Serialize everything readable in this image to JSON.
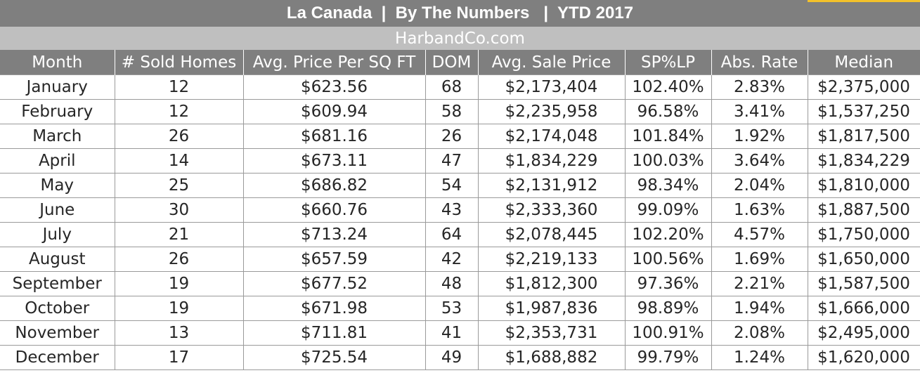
{
  "header": {
    "title": "La Canada  |  By The Numbers   |  YTD 2017",
    "subtitle": "HarbandCo.com"
  },
  "table": {
    "columns": [
      "Month",
      "# Sold Homes",
      "Avg. Price Per SQ FT",
      "DOM",
      "Avg. Sale Price",
      "SP%LP",
      "Abs. Rate",
      "Median"
    ],
    "rows": [
      [
        "January",
        "12",
        "$623.56",
        "68",
        "$2,173,404",
        "102.40%",
        "2.83%",
        "$2,375,000"
      ],
      [
        "February",
        "12",
        "$609.94",
        "58",
        "$2,235,958",
        "96.58%",
        "3.41%",
        "$1,537,250"
      ],
      [
        "March",
        "26",
        "$681.16",
        "26",
        "$2,174,048",
        "101.84%",
        "1.92%",
        "$1,817,500"
      ],
      [
        "April",
        "14",
        "$673.11",
        "47",
        "$1,834,229",
        "100.03%",
        "3.64%",
        "$1,834,229"
      ],
      [
        "May",
        "25",
        "$686.82",
        "54",
        "$2,131,912",
        "98.34%",
        "2.04%",
        "$1,810,000"
      ],
      [
        "June",
        "30",
        "$660.76",
        "43",
        "$2,333,360",
        "99.09%",
        "1.63%",
        "$1,887,500"
      ],
      [
        "July",
        "21",
        "$713.24",
        "64",
        "$2,078,445",
        "102.20%",
        "4.57%",
        "$1,750,000"
      ],
      [
        "August",
        "26",
        "$657.59",
        "42",
        "$2,219,133",
        "100.56%",
        "1.69%",
        "$1,650,000"
      ],
      [
        "September",
        "19",
        "$677.52",
        "48",
        "$1,812,300",
        "97.36%",
        "2.21%",
        "$1,587,500"
      ],
      [
        "October",
        "19",
        "$671.98",
        "53",
        "$1,987,836",
        "98.89%",
        "1.94%",
        "$1,666,000"
      ],
      [
        "November",
        "13",
        "$711.81",
        "41",
        "$2,353,731",
        "100.91%",
        "2.08%",
        "$2,495,000"
      ],
      [
        "December",
        "17",
        "$725.54",
        "49",
        "$1,688,882",
        "99.79%",
        "1.24%",
        "$1,620,000"
      ]
    ]
  },
  "colors": {
    "header_bg": "#7f7f7f",
    "subheader_bg": "#bfbfbf",
    "header_text": "#ffffff",
    "cell_text": "#262626",
    "grid": "#9a9a9a",
    "accent": "#f3c12b"
  }
}
